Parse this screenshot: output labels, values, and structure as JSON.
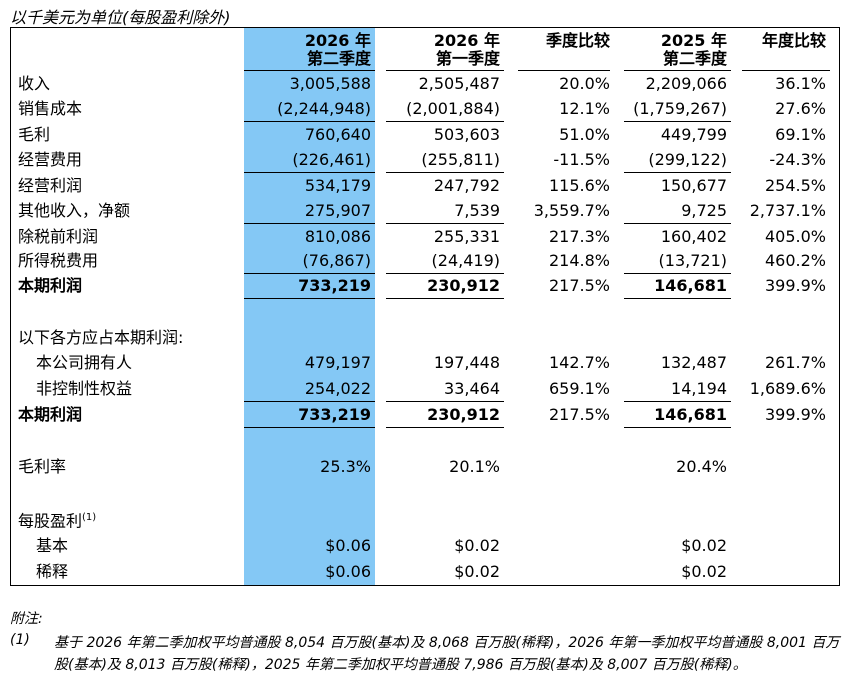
{
  "caption": "以千美元为单位(每股盈利除外)",
  "headers": {
    "c1_line1": "2026 年",
    "c1_line2": "第二季度",
    "c2_line1": "2026 年",
    "c2_line2": "第一季度",
    "c3": "季度比较",
    "c4_line1": "2025 年",
    "c4_line2": "第二季度",
    "c5": "年度比较"
  },
  "rows": [
    {
      "label": "收入",
      "v": [
        "3,005,588",
        "2,505,487",
        "20.0%",
        "2,209,066",
        "36.1%"
      ]
    },
    {
      "label": "销售成本",
      "v": [
        "(2,244,948)",
        "(2,001,884)",
        "12.1%",
        "(1,759,267)",
        "27.6%"
      ]
    },
    {
      "label": "毛利",
      "v": [
        "760,640",
        "503,603",
        "51.0%",
        "449,799",
        "69.1%"
      ]
    },
    {
      "label": "经营费用",
      "v": [
        "(226,461)",
        "(255,811)",
        "-11.5%",
        "(299,122)",
        "-24.3%"
      ]
    },
    {
      "label": "经营利润",
      "v": [
        "534,179",
        "247,792",
        "115.6%",
        "150,677",
        "254.5%"
      ]
    },
    {
      "label": "其他收入，净额",
      "v": [
        "275,907",
        "7,539",
        "3,559.7%",
        "9,725",
        "2,737.1%"
      ]
    },
    {
      "label": "除税前利润",
      "v": [
        "810,086",
        "255,331",
        "217.3%",
        "160,402",
        "405.0%"
      ]
    },
    {
      "label": "所得税费用",
      "v": [
        "(76,867)",
        "(24,419)",
        "214.8%",
        "(13,721)",
        "460.2%"
      ]
    },
    {
      "label": "本期利润",
      "v": [
        "733,219",
        "230,912",
        "217.5%",
        "146,681",
        "399.9%"
      ]
    }
  ],
  "attrib_label": "以下各方应占本期利润:",
  "attrib_rows": [
    {
      "label": "本公司拥有人",
      "v": [
        "479,197",
        "197,448",
        "142.7%",
        "132,487",
        "261.7%"
      ]
    },
    {
      "label": "非控制性权益",
      "v": [
        "254,022",
        "33,464",
        "659.1%",
        "14,194",
        "1,689.6%"
      ]
    },
    {
      "label": "本期利润",
      "v": [
        "733,219",
        "230,912",
        "217.5%",
        "146,681",
        "399.9%"
      ]
    }
  ],
  "gross_margin": {
    "label": "毛利率",
    "v": [
      "25.3%",
      "20.1%",
      "20.4%"
    ]
  },
  "eps": {
    "label": "每股盈利",
    "sup": "(1)",
    "basic": {
      "label": "基本",
      "v": [
        "$0.06",
        "$0.02",
        "$0.02"
      ]
    },
    "diluted": {
      "label": "稀释",
      "v": [
        "$0.06",
        "$0.02",
        "$0.02"
      ]
    }
  },
  "notes_title": "附注:",
  "note_num": "(1)",
  "note_text": "基于 2026 年第二季加权平均普通股 8,054 百万股(基本)及 8,068 百万股(稀释)，2026 年第一季加权平均普通股 8,001 百万股(基本)及 8,013 百万股(稀释)，2025 年第二季加权平均普通股 7,986 百万股(基本)及 8,007 百万股(稀释)。"
}
